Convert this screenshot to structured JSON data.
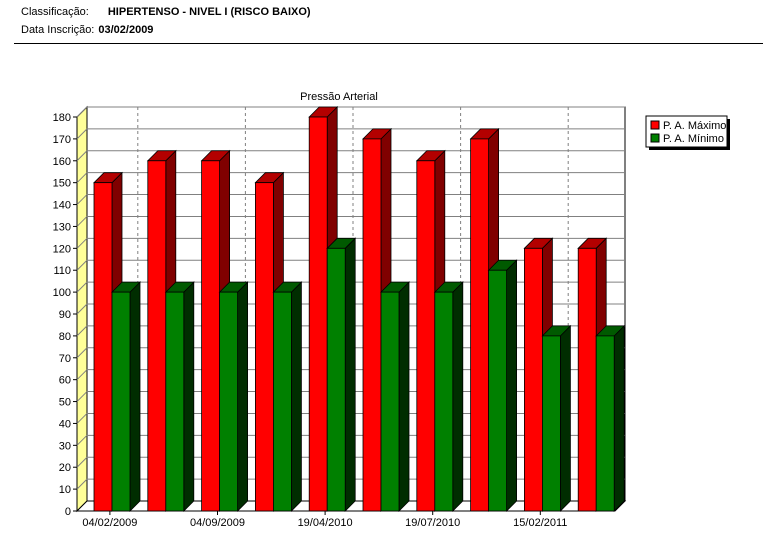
{
  "header": {
    "classification_label": "Classificação:",
    "classification_value": "HIPERTENSO - NIVEL I (RISCO BAIXO)",
    "registration_label": "Data Inscrição:",
    "registration_value": "03/02/2009"
  },
  "chart_data": {
    "type": "bar",
    "title": "Pressão Arterial",
    "xlabel": "",
    "ylabel": "",
    "ylim": [
      0,
      180
    ],
    "ytick_step": 10,
    "grid": true,
    "legend_position": "top-right",
    "categories": [
      "04/02/2009",
      "",
      "04/09/2009",
      "",
      "19/04/2010",
      "",
      "19/07/2010",
      "",
      "15/02/2011",
      ""
    ],
    "series": [
      {
        "name": "P. A. Máximo",
        "color": "#ff0000",
        "values": [
          150,
          160,
          160,
          150,
          180,
          170,
          160,
          170,
          120,
          120
        ]
      },
      {
        "name": "P. A. Mínimo",
        "color": "#008000",
        "values": [
          100,
          100,
          100,
          100,
          120,
          100,
          100,
          110,
          80,
          80
        ]
      }
    ],
    "wall_color": "#ffff99"
  }
}
